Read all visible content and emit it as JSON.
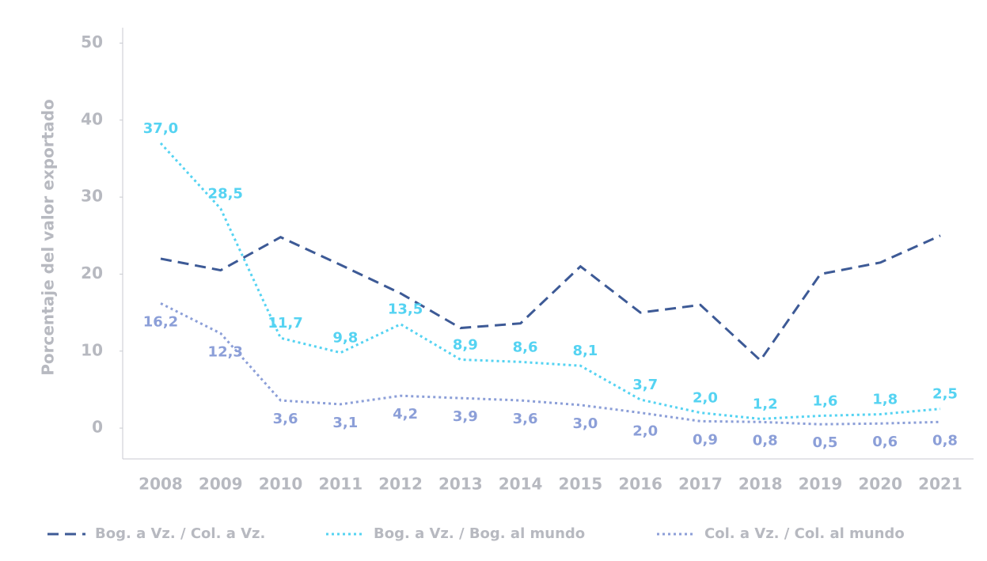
{
  "chart_data": {
    "type": "line",
    "y_axis_label": "Porcentaje del valor exportado",
    "categories": [
      "2008",
      "2009",
      "2010",
      "2011",
      "2012",
      "2013",
      "2014",
      "2015",
      "2016",
      "2017",
      "2018",
      "2019",
      "2020",
      "2021"
    ],
    "series": [
      {
        "name": "Bog. a Vz. / Col. a Vz.",
        "color": "#3d5a96",
        "dash": "dashed",
        "values": [
          22,
          20.5,
          24.8,
          21.2,
          17.5,
          13,
          13.6,
          21,
          15,
          16,
          8.8,
          20,
          21.5,
          25
        ]
      },
      {
        "name": "Bog. a Vz. / Bog. al mundo",
        "color": "#55d3f2",
        "dash": "dotted",
        "values": [
          37.0,
          28.5,
          11.7,
          9.8,
          13.5,
          8.9,
          8.6,
          8.1,
          3.7,
          2.0,
          1.2,
          1.6,
          1.8,
          2.5
        ],
        "value_labels": [
          "37,0",
          "28,5",
          "11,7",
          "9,8",
          "13,5",
          "8,9",
          "8,6",
          "8,1",
          "3,7",
          "2,0",
          "1,2",
          "1,6",
          "1,8",
          "2,5"
        ]
      },
      {
        "name": "Col. a Vz. / Col. al mundo",
        "color": "#8c9fd8",
        "dash": "dotted",
        "values": [
          16.2,
          12.3,
          3.6,
          3.1,
          4.2,
          3.9,
          3.6,
          3.0,
          2.0,
          0.9,
          0.8,
          0.5,
          0.6,
          0.8
        ],
        "value_labels": [
          "16,2",
          "12,3",
          "3,6",
          "3,1",
          "4,2",
          "3,9",
          "3,6",
          "3,0",
          "2,0",
          "0,9",
          "0,8",
          "0,5",
          "0,6",
          "0,8"
        ]
      }
    ],
    "ylim": [
      -4,
      52
    ],
    "yticks": [
      0,
      10,
      20,
      30,
      40,
      50
    ],
    "legend": "bottom"
  }
}
